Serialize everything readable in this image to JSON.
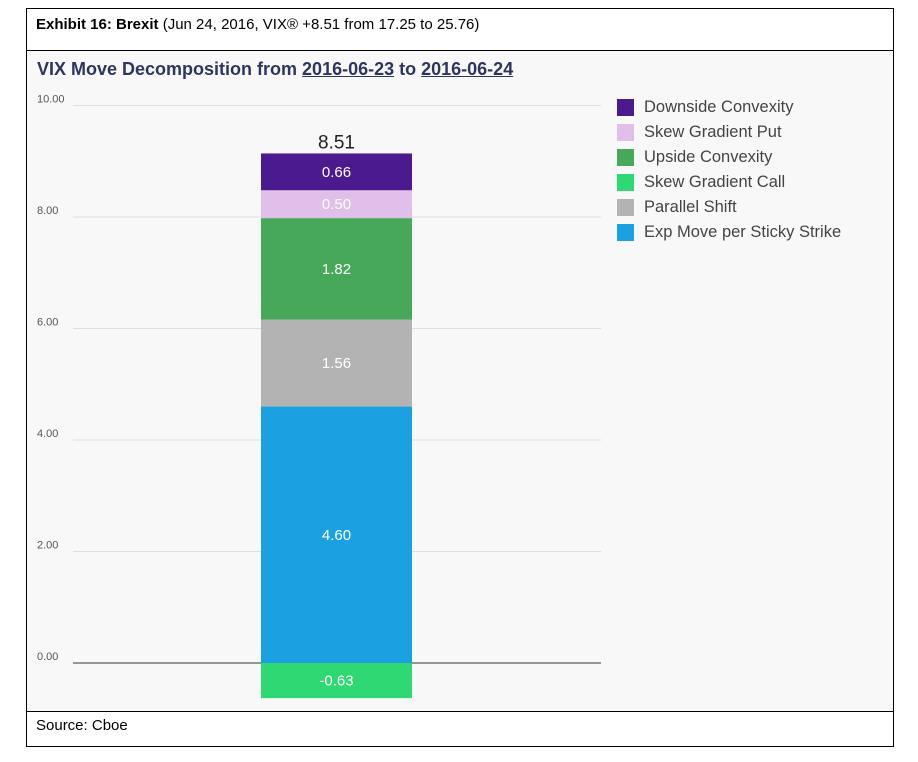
{
  "header": {
    "exhibit_label": "Exhibit 16: Brexit",
    "exhibit_detail": " (Jun 24, 2016, VIX® +8.51 from 17.25 to 25.76)"
  },
  "footer": {
    "source": "Source: Cboe"
  },
  "chart_data": {
    "type": "bar",
    "stacked": true,
    "title_prefix": "VIX Move Decomposition from ",
    "title_date_from": "2016-06-23",
    "title_connector": " to ",
    "title_date_to": "2016-06-24",
    "xlabel": "",
    "ylabel": "",
    "ylim": [
      -0.63,
      10
    ],
    "yticks": [
      "10.00",
      "8.00",
      "6.00",
      "4.00",
      "2.00",
      "0.00"
    ],
    "total_label": "8.51",
    "grid": true,
    "legend_position": "right",
    "series": [
      {
        "name": "Exp Move per Sticky Strike",
        "value": 4.6,
        "label": "4.60",
        "color": "#1ba1e2"
      },
      {
        "name": "Parallel Shift",
        "value": 1.56,
        "label": "1.56",
        "color": "#b3b3b3"
      },
      {
        "name": "Upside Convexity",
        "value": 1.82,
        "label": "1.82",
        "color": "#47a85a"
      },
      {
        "name": "Skew Gradient Put",
        "value": 0.5,
        "label": "0.50",
        "color": "#e0bfea"
      },
      {
        "name": "Downside Convexity",
        "value": 0.66,
        "label": "0.66",
        "color": "#4b1a8e"
      },
      {
        "name": "Skew Gradient Call",
        "value": -0.63,
        "label": "-0.63",
        "color": "#2ed873"
      }
    ],
    "legend_order": [
      "Downside Convexity",
      "Skew Gradient Put",
      "Upside Convexity",
      "Skew Gradient Call",
      "Parallel Shift",
      "Exp Move per Sticky Strike"
    ]
  }
}
